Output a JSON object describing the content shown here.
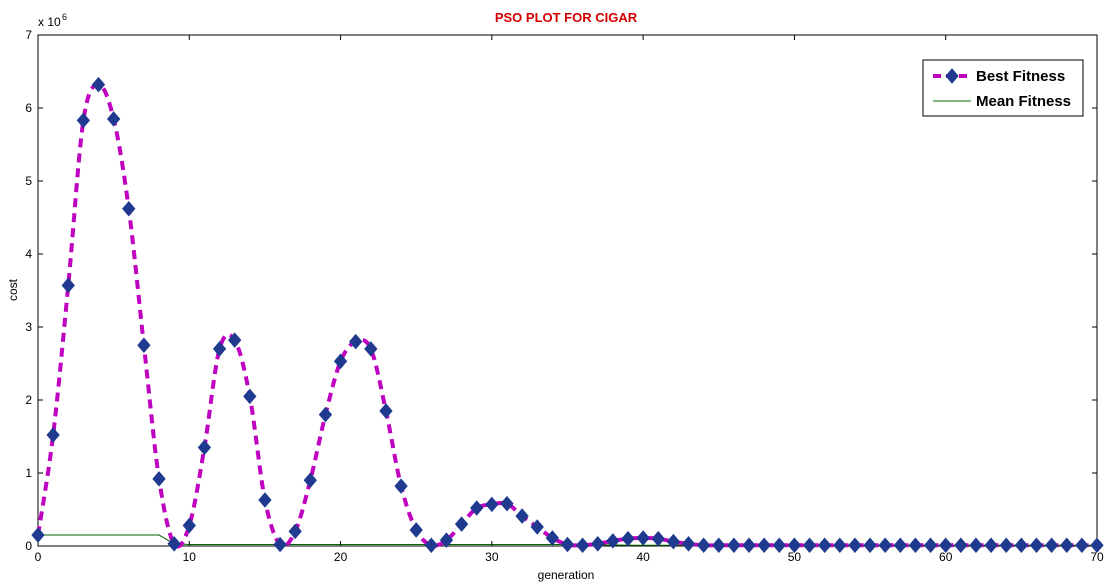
{
  "colors": {
    "background": "#ffffff",
    "axes": "#000000",
    "title": "#d40000",
    "best_fitness_line": "#c000c0",
    "best_fitness_marker": "#1f3a8f",
    "mean_fitness_line": "#006400"
  },
  "chart_data": {
    "type": "line",
    "title": "PSO PLOT FOR CIGAR",
    "xlabel": "generation",
    "ylabel": "cost",
    "y_exponent_label": "x 10",
    "y_exponent_power": "6",
    "xlim": [
      0,
      70
    ],
    "ylim": [
      0,
      7
    ],
    "y_scale_factor": 1000000,
    "xticks": [
      "0",
      "10",
      "20",
      "30",
      "40",
      "50",
      "60",
      "70"
    ],
    "yticks": [
      "0",
      "1",
      "2",
      "3",
      "4",
      "5",
      "6",
      "7"
    ],
    "grid": false,
    "legend_position": "top-right",
    "series": [
      {
        "name": "Best Fitness",
        "style": "dashed-with-diamond-markers",
        "x": [
          0,
          1,
          2,
          3,
          4,
          5,
          6,
          7,
          8,
          9,
          10,
          11,
          12,
          13,
          14,
          15,
          16,
          17,
          18,
          19,
          20,
          21,
          22,
          23,
          24,
          25,
          26,
          27,
          28,
          29,
          30,
          31,
          32,
          33,
          34,
          35,
          36,
          37,
          38,
          39,
          40,
          41,
          42,
          43,
          44,
          45,
          46,
          47,
          48,
          49,
          50,
          51,
          52,
          53,
          54,
          55,
          56,
          57,
          58,
          59,
          60,
          61,
          62,
          63,
          64,
          65,
          66,
          67,
          68,
          69,
          70
        ],
        "values": [
          0.15,
          1.52,
          3.57,
          5.83,
          6.32,
          5.85,
          4.62,
          2.75,
          0.92,
          0.03,
          0.28,
          1.35,
          2.7,
          2.82,
          2.05,
          0.63,
          0.02,
          0.2,
          0.9,
          1.8,
          2.53,
          2.8,
          2.7,
          1.85,
          0.82,
          0.22,
          0.01,
          0.08,
          0.3,
          0.52,
          0.57,
          0.58,
          0.41,
          0.26,
          0.11,
          0.02,
          0.01,
          0.03,
          0.07,
          0.1,
          0.11,
          0.1,
          0.06,
          0.03,
          0.01,
          0.01,
          0.01,
          0.01,
          0.01,
          0.01,
          0.01,
          0.01,
          0.01,
          0.01,
          0.01,
          0.01,
          0.01,
          0.01,
          0.01,
          0.01,
          0.01,
          0.01,
          0.01,
          0.01,
          0.01,
          0.01,
          0.01,
          0.01,
          0.01,
          0.01,
          0.01
        ]
      },
      {
        "name": "Mean Fitness",
        "style": "solid-thin",
        "x": [
          0,
          1,
          2,
          3,
          4,
          5,
          6,
          7,
          8,
          9,
          10,
          20,
          30,
          35,
          40,
          50,
          60,
          70
        ],
        "values": [
          0.15,
          0.15,
          0.15,
          0.15,
          0.15,
          0.15,
          0.15,
          0.15,
          0.15,
          0.03,
          0.02,
          0.02,
          0.02,
          0.02,
          0.01,
          0.01,
          0.01,
          0.01
        ]
      }
    ]
  }
}
